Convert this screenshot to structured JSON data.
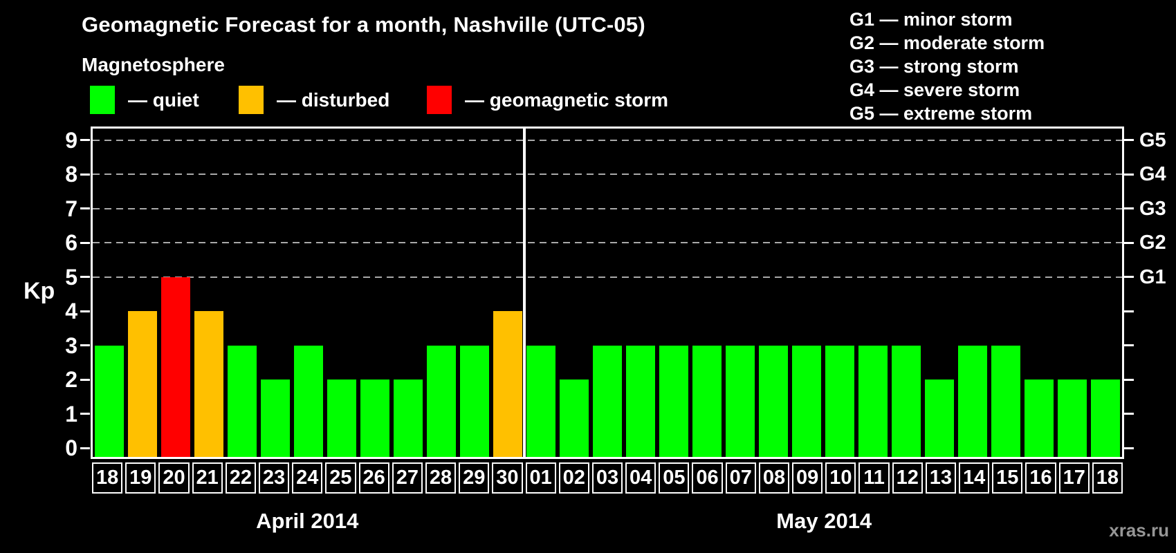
{
  "title": "Geomagnetic Forecast for a month, Nashville (UTC-05)",
  "subtitle": "Magnetosphere",
  "legend": [
    {
      "name": "quiet",
      "label": "— quiet",
      "color": "#00ff00"
    },
    {
      "name": "disturbed",
      "label": "— disturbed",
      "color": "#ffc000"
    },
    {
      "name": "storm",
      "label": "— geomagnetic storm",
      "color": "#ff0000"
    }
  ],
  "g_scale_legend": [
    "G1 — minor storm",
    "G2 — moderate storm",
    "G3 — strong storm",
    "G4 — severe storm",
    "G5 — extreme storm"
  ],
  "y_axis": {
    "label": "Kp",
    "ticks": [
      "0",
      "1",
      "2",
      "3",
      "4",
      "5",
      "6",
      "7",
      "8",
      "9"
    ],
    "storm_gridlines": [
      5,
      6,
      7,
      8,
      9
    ]
  },
  "right_axis": {
    "tick_levels": [
      0,
      1,
      2,
      3,
      4,
      5,
      6,
      7,
      8,
      9
    ],
    "labels": [
      {
        "kp": 5,
        "label": "G1"
      },
      {
        "kp": 6,
        "label": "G2"
      },
      {
        "kp": 7,
        "label": "G3"
      },
      {
        "kp": 8,
        "label": "G4"
      },
      {
        "kp": 9,
        "label": "G5"
      }
    ]
  },
  "watermark": "xras.ru",
  "chart_data": {
    "type": "bar",
    "title": "Geomagnetic Forecast for a month, Nashville (UTC-05)",
    "xlabel": "",
    "ylabel": "Kp",
    "ylim": [
      0,
      9.4
    ],
    "grid": "dashed horizontal at Kp 5-9 only",
    "legend_position": "top-left",
    "colors_by_status": {
      "quiet": "#00ff00",
      "disturbed": "#ffc000",
      "storm": "#ff0000"
    },
    "groups": [
      {
        "label": "April 2014",
        "bars": [
          {
            "day": "18",
            "kp": 3,
            "status": "quiet"
          },
          {
            "day": "19",
            "kp": 4,
            "status": "disturbed"
          },
          {
            "day": "20",
            "kp": 5,
            "status": "storm"
          },
          {
            "day": "21",
            "kp": 4,
            "status": "disturbed"
          },
          {
            "day": "22",
            "kp": 3,
            "status": "quiet"
          },
          {
            "day": "23",
            "kp": 2,
            "status": "quiet"
          },
          {
            "day": "24",
            "kp": 3,
            "status": "quiet"
          },
          {
            "day": "25",
            "kp": 2,
            "status": "quiet"
          },
          {
            "day": "26",
            "kp": 2,
            "status": "quiet"
          },
          {
            "day": "27",
            "kp": 2,
            "status": "quiet"
          },
          {
            "day": "28",
            "kp": 3,
            "status": "quiet"
          },
          {
            "day": "29",
            "kp": 3,
            "status": "quiet"
          },
          {
            "day": "30",
            "kp": 4,
            "status": "disturbed"
          }
        ]
      },
      {
        "label": "May 2014",
        "bars": [
          {
            "day": "01",
            "kp": 3,
            "status": "quiet"
          },
          {
            "day": "02",
            "kp": 2,
            "status": "quiet"
          },
          {
            "day": "03",
            "kp": 3,
            "status": "quiet"
          },
          {
            "day": "04",
            "kp": 3,
            "status": "quiet"
          },
          {
            "day": "05",
            "kp": 3,
            "status": "quiet"
          },
          {
            "day": "06",
            "kp": 3,
            "status": "quiet"
          },
          {
            "day": "07",
            "kp": 3,
            "status": "quiet"
          },
          {
            "day": "08",
            "kp": 3,
            "status": "quiet"
          },
          {
            "day": "09",
            "kp": 3,
            "status": "quiet"
          },
          {
            "day": "10",
            "kp": 3,
            "status": "quiet"
          },
          {
            "day": "11",
            "kp": 3,
            "status": "quiet"
          },
          {
            "day": "12",
            "kp": 3,
            "status": "quiet"
          },
          {
            "day": "13",
            "kp": 2,
            "status": "quiet"
          },
          {
            "day": "14",
            "kp": 3,
            "status": "quiet"
          },
          {
            "day": "15",
            "kp": 3,
            "status": "quiet"
          },
          {
            "day": "16",
            "kp": 2,
            "status": "quiet"
          },
          {
            "day": "17",
            "kp": 2,
            "status": "quiet"
          },
          {
            "day": "18",
            "kp": 2,
            "status": "quiet"
          }
        ]
      }
    ]
  }
}
